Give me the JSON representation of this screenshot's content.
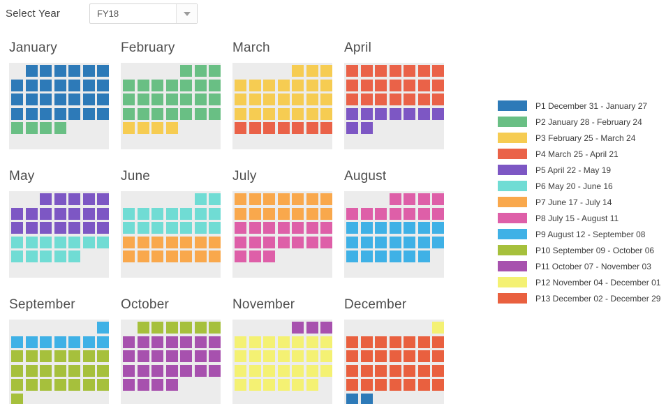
{
  "controls": {
    "select_year_label": "Select Year",
    "selected_year": "FY18"
  },
  "grid_background": "#ececec",
  "palette": {
    "1": "#2d7ab8",
    "2": "#69bf84",
    "3": "#f6cc52",
    "4": "#ea6248",
    "5": "#7d57c4",
    "6": "#70dcd4",
    "7": "#f9a84c",
    "8": "#de5fa8",
    "9": "#3fb1e6",
    "10": "#a6c03c",
    "11": "#a751ae",
    "12": "#f4f173",
    "13": "#e9603f"
  },
  "legend": [
    {
      "key": "1",
      "period": "P1",
      "label": "P1 December 31 - January 27"
    },
    {
      "key": "2",
      "period": "P2",
      "label": "P2 January 28 - February 24"
    },
    {
      "key": "3",
      "period": "P3",
      "label": "P3 February 25 - March 24"
    },
    {
      "key": "4",
      "period": "P4",
      "label": "P4 March 25 - April 21"
    },
    {
      "key": "5",
      "period": "P5",
      "label": "P5 April 22 - May 19"
    },
    {
      "key": "6",
      "period": "P6",
      "label": "P6 May 20 - June 16"
    },
    {
      "key": "7",
      "period": "P7",
      "label": "P7 June 17 - July 14"
    },
    {
      "key": "8",
      "period": "P8",
      "label": "P8 July 15 - August 11"
    },
    {
      "key": "9",
      "period": "P9",
      "label": "P9 August 12 - September 08"
    },
    {
      "key": "10",
      "period": "P10",
      "label": "P10 September 09 - October 06"
    },
    {
      "key": "11",
      "period": "P11",
      "label": "P11 October 07 - November 03"
    },
    {
      "key": "12",
      "period": "P12",
      "label": "P12 November 04 - December 01"
    },
    {
      "key": "13",
      "period": "P13",
      "label": "P13 December 02 - December 29"
    }
  ],
  "months": [
    {
      "name": "January",
      "weeks": [
        [
          0,
          1,
          1,
          1,
          1,
          1,
          1
        ],
        [
          1,
          1,
          1,
          1,
          1,
          1,
          1
        ],
        [
          1,
          1,
          1,
          1,
          1,
          1,
          1
        ],
        [
          1,
          1,
          1,
          1,
          1,
          1,
          1
        ],
        [
          2,
          2,
          2,
          2,
          0,
          0,
          0
        ]
      ]
    },
    {
      "name": "February",
      "weeks": [
        [
          0,
          0,
          0,
          0,
          2,
          2,
          2
        ],
        [
          2,
          2,
          2,
          2,
          2,
          2,
          2
        ],
        [
          2,
          2,
          2,
          2,
          2,
          2,
          2
        ],
        [
          2,
          2,
          2,
          2,
          2,
          2,
          2
        ],
        [
          3,
          3,
          3,
          3,
          0,
          0,
          0
        ]
      ]
    },
    {
      "name": "March",
      "weeks": [
        [
          0,
          0,
          0,
          0,
          3,
          3,
          3
        ],
        [
          3,
          3,
          3,
          3,
          3,
          3,
          3
        ],
        [
          3,
          3,
          3,
          3,
          3,
          3,
          3
        ],
        [
          3,
          3,
          3,
          3,
          3,
          3,
          3
        ],
        [
          4,
          4,
          4,
          4,
          4,
          4,
          4
        ]
      ]
    },
    {
      "name": "April",
      "weeks": [
        [
          4,
          4,
          4,
          4,
          4,
          4,
          4
        ],
        [
          4,
          4,
          4,
          4,
          4,
          4,
          4
        ],
        [
          4,
          4,
          4,
          4,
          4,
          4,
          4
        ],
        [
          5,
          5,
          5,
          5,
          5,
          5,
          5
        ],
        [
          5,
          5,
          0,
          0,
          0,
          0,
          0
        ]
      ]
    },
    {
      "name": "May",
      "weeks": [
        [
          0,
          0,
          5,
          5,
          5,
          5,
          5
        ],
        [
          5,
          5,
          5,
          5,
          5,
          5,
          5
        ],
        [
          5,
          5,
          5,
          5,
          5,
          5,
          5
        ],
        [
          6,
          6,
          6,
          6,
          6,
          6,
          6
        ],
        [
          6,
          6,
          6,
          6,
          6,
          0,
          0
        ]
      ]
    },
    {
      "name": "June",
      "weeks": [
        [
          0,
          0,
          0,
          0,
          0,
          6,
          6
        ],
        [
          6,
          6,
          6,
          6,
          6,
          6,
          6
        ],
        [
          6,
          6,
          6,
          6,
          6,
          6,
          6
        ],
        [
          7,
          7,
          7,
          7,
          7,
          7,
          7
        ],
        [
          7,
          7,
          7,
          7,
          7,
          7,
          7
        ]
      ]
    },
    {
      "name": "July",
      "weeks": [
        [
          7,
          7,
          7,
          7,
          7,
          7,
          7
        ],
        [
          7,
          7,
          7,
          7,
          7,
          7,
          7
        ],
        [
          8,
          8,
          8,
          8,
          8,
          8,
          8
        ],
        [
          8,
          8,
          8,
          8,
          8,
          8,
          8
        ],
        [
          8,
          8,
          8,
          0,
          0,
          0,
          0
        ]
      ]
    },
    {
      "name": "August",
      "weeks": [
        [
          0,
          0,
          0,
          8,
          8,
          8,
          8
        ],
        [
          8,
          8,
          8,
          8,
          8,
          8,
          8
        ],
        [
          9,
          9,
          9,
          9,
          9,
          9,
          9
        ],
        [
          9,
          9,
          9,
          9,
          9,
          9,
          9
        ],
        [
          9,
          9,
          9,
          9,
          9,
          9,
          0
        ]
      ]
    },
    {
      "name": "September",
      "weeks": [
        [
          0,
          0,
          0,
          0,
          0,
          0,
          9
        ],
        [
          9,
          9,
          9,
          9,
          9,
          9,
          9
        ],
        [
          10,
          10,
          10,
          10,
          10,
          10,
          10
        ],
        [
          10,
          10,
          10,
          10,
          10,
          10,
          10
        ],
        [
          10,
          10,
          10,
          10,
          10,
          10,
          10
        ],
        [
          10,
          0,
          0,
          0,
          0,
          0,
          0
        ]
      ]
    },
    {
      "name": "October",
      "weeks": [
        [
          0,
          10,
          10,
          10,
          10,
          10,
          10
        ],
        [
          11,
          11,
          11,
          11,
          11,
          11,
          11
        ],
        [
          11,
          11,
          11,
          11,
          11,
          11,
          11
        ],
        [
          11,
          11,
          11,
          11,
          11,
          11,
          11
        ],
        [
          11,
          11,
          11,
          11,
          0,
          0,
          0
        ]
      ]
    },
    {
      "name": "November",
      "weeks": [
        [
          0,
          0,
          0,
          0,
          11,
          11,
          11
        ],
        [
          12,
          12,
          12,
          12,
          12,
          12,
          12
        ],
        [
          12,
          12,
          12,
          12,
          12,
          12,
          12
        ],
        [
          12,
          12,
          12,
          12,
          12,
          12,
          12
        ],
        [
          12,
          12,
          12,
          12,
          12,
          12,
          0
        ]
      ]
    },
    {
      "name": "December",
      "weeks": [
        [
          0,
          0,
          0,
          0,
          0,
          0,
          12
        ],
        [
          13,
          13,
          13,
          13,
          13,
          13,
          13
        ],
        [
          13,
          13,
          13,
          13,
          13,
          13,
          13
        ],
        [
          13,
          13,
          13,
          13,
          13,
          13,
          13
        ],
        [
          13,
          13,
          13,
          13,
          13,
          13,
          13
        ],
        [
          1,
          1,
          0,
          0,
          0,
          0,
          0
        ]
      ]
    }
  ]
}
